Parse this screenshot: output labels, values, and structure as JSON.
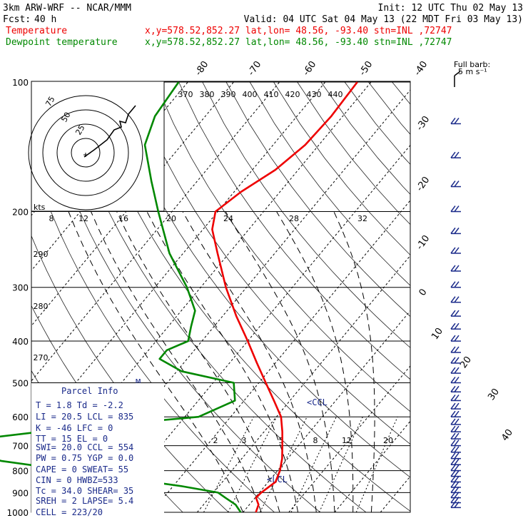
{
  "header": {
    "model": "3km ARW-WRF -- NCAR/MMM",
    "init": "Init: 12 UTC Thu 02 May 13",
    "fcst_label": "Fcst:",
    "fcst_value": "40 h",
    "valid": "Valid: 04 UTC Sat 04 May 13 (22 MDT Fri 03 May 13)",
    "temp_label": "Temperature",
    "temp_loc": "x,y=578.52,852.27   lat,lon= 48.56, -93.40   stn=INL ,72747",
    "dew_label": "Dewpoint temperature",
    "dew_loc": "x,y=578.52,852.27   lat,lon= 48.56, -93.40   stn=INL ,72747",
    "full_barb": "Full barb:",
    "full_barb_unit": "5 m s⁻¹"
  },
  "colors": {
    "temperature": "#ee0000",
    "dewpoint": "#008800",
    "parcel_text": "#1a2a8a"
  },
  "chart_data": {
    "type": "line",
    "y_axis": "pressure (hPa)",
    "ylim": [
      1000,
      100
    ],
    "y_scale": "log",
    "pressure_ticks": [
      100,
      200,
      300,
      400,
      500,
      600,
      700,
      800,
      900,
      1000
    ],
    "isotherm_labels": [
      "-80",
      "-70",
      "-60",
      "-50",
      "-40",
      "-30",
      "-20",
      "-10",
      "0",
      "10",
      "20",
      "30",
      "40"
    ],
    "theta_labels": [
      "370",
      "380",
      "390",
      "400",
      "410",
      "420",
      "430",
      "440"
    ],
    "theta_left_labels": [
      "290",
      "280",
      "270"
    ],
    "hodo_speed_labels": [
      "8",
      "12",
      "16",
      "20",
      "24",
      "28",
      "32"
    ],
    "hodo_unit": "kts",
    "hodo_ring_labels": [
      "75",
      "50",
      "25"
    ],
    "mixing_ratio_labels": [
      "2",
      "3",
      "5",
      "8",
      "12",
      "20"
    ],
    "lcl_labels": [
      "CCL",
      "LCL"
    ],
    "mark_label": "M",
    "series": [
      {
        "name": "Temperature",
        "color": "#ee0000",
        "points": [
          [
            1000,
            2.8
          ],
          [
            960,
            2.0
          ],
          [
            925,
            0.2
          ],
          [
            900,
            0.4
          ],
          [
            850,
            1.6
          ],
          [
            800,
            0.5
          ],
          [
            750,
            -1.2
          ],
          [
            700,
            -3.5
          ],
          [
            650,
            -6.0
          ],
          [
            600,
            -9.0
          ],
          [
            550,
            -13.5
          ],
          [
            500,
            -18.5
          ],
          [
            450,
            -24.0
          ],
          [
            400,
            -30.0
          ],
          [
            350,
            -37.0
          ],
          [
            300,
            -44.5
          ],
          [
            250,
            -52.5
          ],
          [
            220,
            -58.0
          ],
          [
            200,
            -60.5
          ],
          [
            180,
            -58.5
          ],
          [
            160,
            -55.0
          ],
          [
            140,
            -53.0
          ],
          [
            120,
            -52.5
          ],
          [
            100,
            -53.0
          ]
        ]
      },
      {
        "name": "Dewpoint temperature",
        "color": "#008800",
        "points": [
          [
            1000,
            -0.5
          ],
          [
            960,
            -3.0
          ],
          [
            925,
            -6.5
          ],
          [
            900,
            -9.0
          ],
          [
            870,
            -18.0
          ],
          [
            800,
            -45.0
          ],
          [
            760,
            -62.0
          ],
          [
            720,
            -72.0
          ],
          [
            700,
            -74.0
          ],
          [
            680,
            -73.0
          ],
          [
            640,
            -54.0
          ],
          [
            600,
            -27.0
          ],
          [
            550,
            -22.0
          ],
          [
            500,
            -25.5
          ],
          [
            470,
            -39.0
          ],
          [
            440,
            -46.0
          ],
          [
            420,
            -46.0
          ],
          [
            400,
            -43.0
          ],
          [
            370,
            -45.0
          ],
          [
            340,
            -47.0
          ],
          [
            300,
            -53.0
          ],
          [
            250,
            -63.0
          ],
          [
            200,
            -73.0
          ],
          [
            170,
            -80.0
          ],
          [
            140,
            -88.0
          ],
          [
            120,
            -91.0
          ],
          [
            100,
            -92.0
          ]
        ]
      }
    ]
  },
  "parcel": {
    "title": "Parcel Info",
    "rows": [
      "T  =    1.8 Td = -2.2",
      "LI =   20.5 LCL = 835",
      "K  =    -46 LFC =   0",
      "TT =     15 EL  =   0",
      "SWI=   20.0 CCL = 554",
      "PW =   0.75 YGP = 0.0",
      "CAPE =    0 SWEAT= 55",
      "CIN  =    0 HWBZ=533",
      "Tc  =  34.0 SHEAR= 35",
      "SREH =    2 LAPSE= 5.4",
      "CELL = 223/20"
    ]
  }
}
